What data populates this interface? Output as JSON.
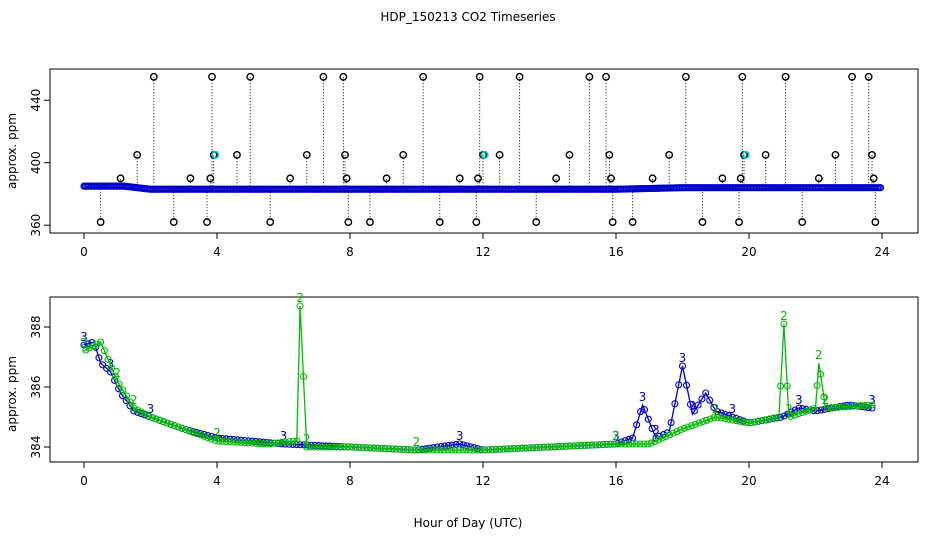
{
  "title": "HDP_150213  CO2 Timeseries",
  "xlabel": "Hour of Day (UTC)",
  "colors": {
    "series_a": "#0000cc",
    "series_b": "#00bb00",
    "outlier": "#000000",
    "cyan": "#00cccc"
  },
  "chart_data": [
    {
      "type": "scatter",
      "name": "top-panel",
      "ylabel": "approx. ppm",
      "xlim": [
        0,
        24
      ],
      "ylim": [
        355,
        460
      ],
      "xticks": [
        "0",
        "4",
        "8",
        "12",
        "16",
        "20",
        "24"
      ],
      "yticks": [
        "360",
        "400",
        "440"
      ],
      "baseline_series": [
        {
          "name": "mostly-blue",
          "x": [
            0,
            0.4,
            0.8,
            1.2,
            2.0,
            4.0,
            8.0,
            12.0,
            15.8,
            16.0,
            18.0,
            20.0,
            24.0
          ],
          "y": [
            385,
            385,
            385,
            385,
            383,
            383,
            383,
            383,
            383,
            383,
            384,
            384,
            384
          ]
        }
      ],
      "outliers": [
        {
          "x": 0.5,
          "y": 362
        },
        {
          "x": 1.1,
          "y": 390
        },
        {
          "x": 1.6,
          "y": 405
        },
        {
          "x": 2.1,
          "y": 455
        },
        {
          "x": 2.7,
          "y": 362
        },
        {
          "x": 3.2,
          "y": 390
        },
        {
          "x": 3.7,
          "y": 362
        },
        {
          "x": 3.8,
          "y": 390
        },
        {
          "x": 3.85,
          "y": 455
        },
        {
          "x": 3.9,
          "y": 405
        },
        {
          "x": 4.6,
          "y": 405
        },
        {
          "x": 5.0,
          "y": 455
        },
        {
          "x": 5.6,
          "y": 362
        },
        {
          "x": 6.2,
          "y": 390
        },
        {
          "x": 6.7,
          "y": 405
        },
        {
          "x": 7.2,
          "y": 455
        },
        {
          "x": 7.8,
          "y": 455
        },
        {
          "x": 7.85,
          "y": 405
        },
        {
          "x": 7.9,
          "y": 390
        },
        {
          "x": 7.95,
          "y": 362
        },
        {
          "x": 8.6,
          "y": 362
        },
        {
          "x": 9.1,
          "y": 390
        },
        {
          "x": 9.6,
          "y": 405
        },
        {
          "x": 10.2,
          "y": 455
        },
        {
          "x": 10.7,
          "y": 362
        },
        {
          "x": 11.3,
          "y": 390
        },
        {
          "x": 11.8,
          "y": 362
        },
        {
          "x": 11.85,
          "y": 390
        },
        {
          "x": 11.9,
          "y": 455
        },
        {
          "x": 12.0,
          "y": 405
        },
        {
          "x": 12.5,
          "y": 405
        },
        {
          "x": 13.1,
          "y": 455
        },
        {
          "x": 13.6,
          "y": 362
        },
        {
          "x": 14.2,
          "y": 390
        },
        {
          "x": 14.6,
          "y": 405
        },
        {
          "x": 15.2,
          "y": 455
        },
        {
          "x": 15.7,
          "y": 455
        },
        {
          "x": 15.8,
          "y": 405
        },
        {
          "x": 15.85,
          "y": 390
        },
        {
          "x": 15.9,
          "y": 362
        },
        {
          "x": 16.5,
          "y": 362
        },
        {
          "x": 17.1,
          "y": 390
        },
        {
          "x": 17.6,
          "y": 405
        },
        {
          "x": 18.1,
          "y": 455
        },
        {
          "x": 18.6,
          "y": 362
        },
        {
          "x": 19.2,
          "y": 390
        },
        {
          "x": 19.7,
          "y": 362
        },
        {
          "x": 19.75,
          "y": 390
        },
        {
          "x": 19.8,
          "y": 455
        },
        {
          "x": 19.85,
          "y": 405
        },
        {
          "x": 20.5,
          "y": 405
        },
        {
          "x": 21.1,
          "y": 455
        },
        {
          "x": 21.6,
          "y": 362
        },
        {
          "x": 22.1,
          "y": 390
        },
        {
          "x": 22.6,
          "y": 405
        },
        {
          "x": 23.1,
          "y": 455
        },
        {
          "x": 23.6,
          "y": 455
        },
        {
          "x": 23.7,
          "y": 405
        },
        {
          "x": 23.75,
          "y": 390
        },
        {
          "x": 23.8,
          "y": 362
        }
      ],
      "cyan_points": [
        {
          "x": 3.95,
          "y": 405
        },
        {
          "x": 12.05,
          "y": 405
        },
        {
          "x": 19.9,
          "y": 405
        }
      ]
    },
    {
      "type": "scatter",
      "name": "bottom-panel",
      "ylabel": "approx. ppm",
      "xlim": [
        0,
        24
      ],
      "ylim": [
        383.5,
        389
      ],
      "xticks": [
        "0",
        "4",
        "8",
        "12",
        "16",
        "20",
        "24"
      ],
      "yticks": [
        "384",
        "386",
        "388"
      ],
      "series": [
        {
          "name": "3",
          "label": "3",
          "x": [
            0,
            0.3,
            0.5,
            0.8,
            1.1,
            1.5,
            2.0,
            3.0,
            4.0,
            6.0,
            8.0,
            10.0,
            11.3,
            12.0,
            14.0,
            16.0,
            16.5,
            16.8,
            17.2,
            17.6,
            18.0,
            18.3,
            18.7,
            19.0,
            19.5,
            20.0,
            21.0,
            21.5,
            22.0,
            23.0,
            23.7
          ],
          "y": [
            387.4,
            387.5,
            386.8,
            386.5,
            385.8,
            385.2,
            385.0,
            384.6,
            384.3,
            384.1,
            384.0,
            383.9,
            384.1,
            383.9,
            384.0,
            384.1,
            384.3,
            385.4,
            384.3,
            384.5,
            386.7,
            385.1,
            385.8,
            385.2,
            385.0,
            384.8,
            385.0,
            385.3,
            385.2,
            385.4,
            385.3
          ]
        },
        {
          "name": "2",
          "label": "2",
          "x": [
            0,
            0.5,
            1.0,
            1.5,
            2.0,
            3.0,
            4.0,
            5.5,
            6.4,
            6.5,
            6.7,
            8.0,
            10.0,
            12.0,
            14.0,
            16.0,
            17.0,
            18.0,
            19.0,
            20.0,
            20.9,
            21.05,
            21.2,
            22.0,
            22.1,
            22.3,
            23.7
          ],
          "y": [
            387.2,
            387.5,
            386.2,
            385.3,
            385.0,
            384.6,
            384.2,
            384.1,
            384.2,
            388.7,
            384.0,
            384.0,
            383.9,
            383.9,
            384.0,
            384.1,
            384.1,
            384.6,
            385.0,
            384.8,
            385.0,
            388.1,
            385.0,
            385.3,
            386.8,
            385.3,
            385.4
          ]
        }
      ]
    }
  ]
}
